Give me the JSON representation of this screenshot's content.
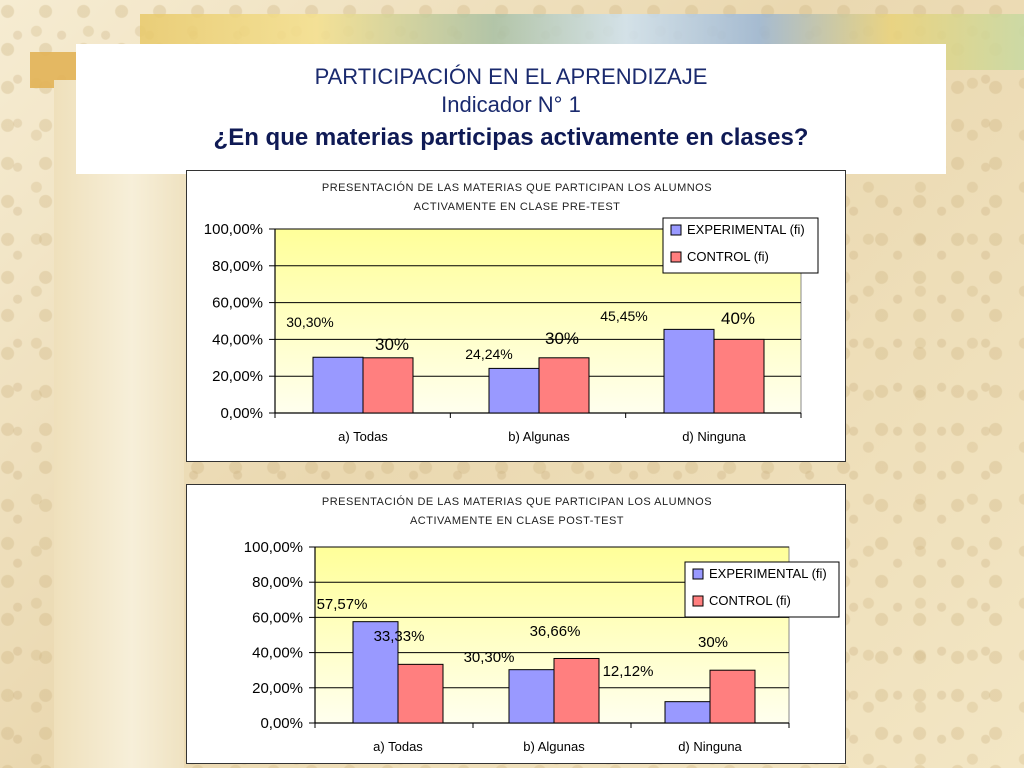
{
  "title": {
    "line1": "PARTICIPACIÓN EN EL APRENDIZAJE",
    "line2": "Indicador N° 1",
    "line3": "¿En que materias participas activamente en clases?"
  },
  "colors": {
    "experimental": "#9999ff",
    "control": "#ff7f7f",
    "plot_top": "#ffff99",
    "plot_bottom": "#ffffee"
  },
  "chart_data": [
    {
      "type": "bar",
      "title_lines": [
        "PRESENTACIÓN DE LAS MATERIAS QUE PARTICIPAN LOS ALUMNOS",
        "ACTIVAMENTE EN CLASE PRE-TEST"
      ],
      "categories": [
        "a) Todas",
        "b) Algunas",
        "d) Ninguna"
      ],
      "series": [
        {
          "name": "EXPERIMENTAL (fi)",
          "values": [
            30.3,
            24.24,
            45.45
          ],
          "labels": [
            "30,30%",
            "24,24%",
            "45,45%"
          ]
        },
        {
          "name": "CONTROL (fi)",
          "values": [
            30,
            30,
            40
          ],
          "labels": [
            "30%",
            "30%",
            "40%"
          ]
        }
      ],
      "ylim": [
        0,
        100
      ],
      "yticks": [
        "0,00%",
        "20,00%",
        "40,00%",
        "60,00%",
        "80,00%",
        "100,00%"
      ],
      "legend_position": "top-right"
    },
    {
      "type": "bar",
      "title_lines": [
        "PRESENTACIÓN DE LAS MATERIAS QUE PARTICIPAN LOS ALUMNOS",
        "ACTIVAMENTE EN CLASE POST-TEST"
      ],
      "categories": [
        "a) Todas",
        "b) Algunas",
        "d) Ninguna"
      ],
      "series": [
        {
          "name": "EXPERIMENTAL (fi)",
          "values": [
            57.57,
            30.3,
            12.12
          ],
          "labels": [
            "57,57%",
            "30,30%",
            "12,12%"
          ]
        },
        {
          "name": "CONTROL (fi)",
          "values": [
            33.33,
            36.66,
            30
          ],
          "labels": [
            "33,33%",
            "36,66%",
            "30%"
          ]
        }
      ],
      "ylim": [
        0,
        100
      ],
      "yticks": [
        "0,00%",
        "20,00%",
        "40,00%",
        "60,00%",
        "80,00%",
        "100,00%"
      ],
      "legend_position": "top-right"
    }
  ]
}
